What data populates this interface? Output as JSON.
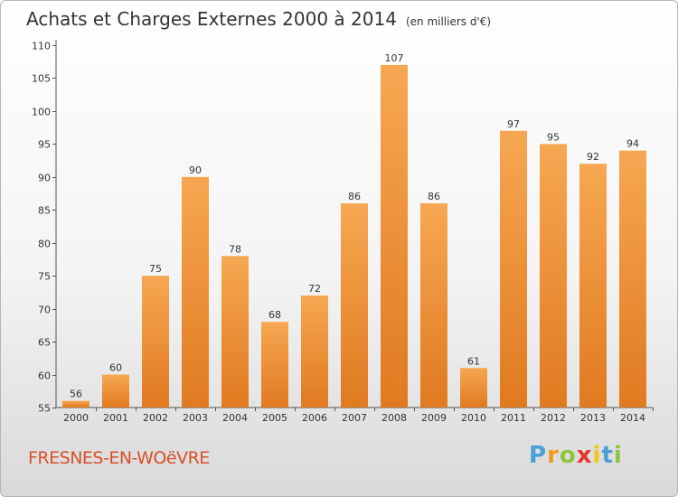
{
  "chart_data": {
    "type": "bar",
    "title": "Achats et Charges Externes 2000 à 2014",
    "subtitle": "(en milliers d'€)",
    "categories": [
      "2000",
      "2001",
      "2002",
      "2003",
      "2004",
      "2005",
      "2006",
      "2007",
      "2008",
      "2009",
      "2010",
      "2011",
      "2012",
      "2013",
      "2014"
    ],
    "values": [
      56,
      60,
      75,
      90,
      78,
      68,
      72,
      86,
      107,
      86,
      61,
      97,
      95,
      92,
      94
    ],
    "xlabel": "",
    "ylabel": "",
    "ylim": [
      55,
      110
    ],
    "yticks": [
      55,
      60,
      65,
      70,
      75,
      80,
      85,
      90,
      95,
      100,
      105,
      110
    ],
    "grid": false,
    "colors": {
      "bar_light": "#f7a752",
      "bar_dark": "#e07a20",
      "axis": "#555555"
    }
  },
  "commune": "FRESNES-EN-WOëVRE",
  "logo": {
    "letters": [
      "P",
      "r",
      "o",
      "x",
      "i",
      "t",
      "i"
    ],
    "colors": [
      "#4a9fd8",
      "#f29a1f",
      "#8cc63f",
      "#e5352d",
      "#f5c518",
      "#4a9fd8",
      "#8cc63f"
    ]
  }
}
